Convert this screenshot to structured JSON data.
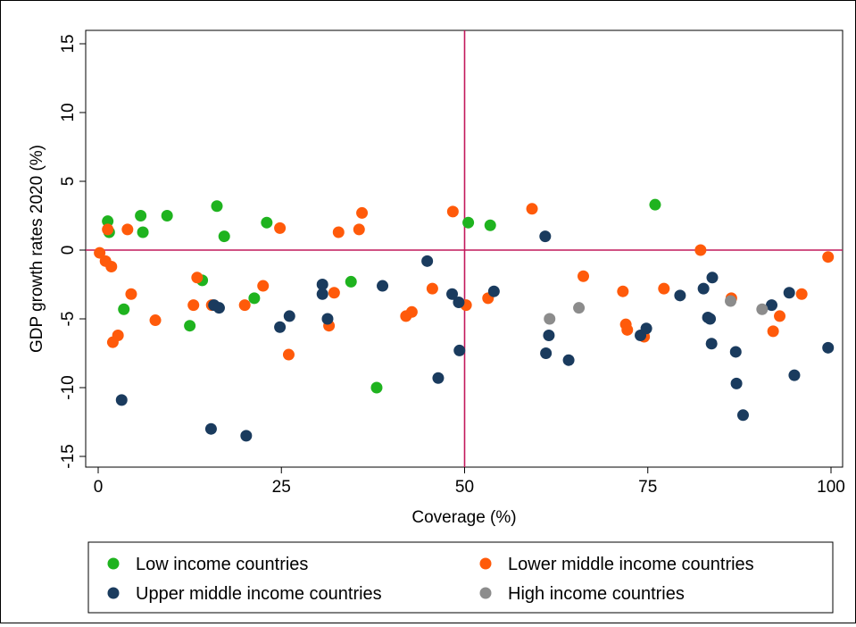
{
  "chart_data": {
    "type": "scatter",
    "xlabel": "Coverage (%)",
    "ylabel": "GDP growth rates 2020 (%)",
    "xlim": [
      0,
      100
    ],
    "ylim": [
      -15,
      15
    ],
    "xticks": [
      0,
      25,
      50,
      75,
      100
    ],
    "yticks": [
      -15,
      -10,
      -5,
      0,
      5,
      10,
      15
    ],
    "reference_lines": {
      "x": 50,
      "y": 0,
      "color": "#c2185b"
    },
    "grid": false,
    "legend_position": "bottom",
    "series": [
      {
        "name": "Low income countries",
        "color": "#1fb31f",
        "points": [
          [
            1.3,
            2.1
          ],
          [
            1.5,
            1.3
          ],
          [
            3.5,
            -4.3
          ],
          [
            5.8,
            2.5
          ],
          [
            6.1,
            1.3
          ],
          [
            9.4,
            2.5
          ],
          [
            12.5,
            -5.5
          ],
          [
            14.2,
            -2.2
          ],
          [
            16.2,
            3.2
          ],
          [
            17.2,
            1.0
          ],
          [
            21.3,
            -3.5
          ],
          [
            23,
            2.0
          ],
          [
            34.5,
            -2.3
          ],
          [
            38,
            -10.0
          ],
          [
            50.5,
            2.0
          ],
          [
            53.5,
            1.8
          ],
          [
            76,
            3.3
          ]
        ]
      },
      {
        "name": "Lower middle income countries",
        "color": "#ff5a0a",
        "points": [
          [
            0.2,
            -0.2
          ],
          [
            1,
            -0.8
          ],
          [
            1.3,
            1.5
          ],
          [
            1.8,
            -1.2
          ],
          [
            2,
            -6.7
          ],
          [
            2.7,
            -6.2
          ],
          [
            4,
            1.5
          ],
          [
            4.5,
            -3.2
          ],
          [
            7.8,
            -5.1
          ],
          [
            13,
            -4.0
          ],
          [
            13.5,
            -2.0
          ],
          [
            15.5,
            -4.0
          ],
          [
            20,
            -4.0
          ],
          [
            22.5,
            -2.6
          ],
          [
            24.8,
            1.6
          ],
          [
            26,
            -7.6
          ],
          [
            31.5,
            -5.5
          ],
          [
            32.2,
            -3.1
          ],
          [
            32.8,
            1.3
          ],
          [
            35.6,
            1.5
          ],
          [
            36,
            2.7
          ],
          [
            42,
            -4.8
          ],
          [
            42.8,
            -4.5
          ],
          [
            45.6,
            -2.8
          ],
          [
            48.4,
            2.8
          ],
          [
            50.2,
            -4.0
          ],
          [
            53.2,
            -3.5
          ],
          [
            59.2,
            3.0
          ],
          [
            66.2,
            -1.9
          ],
          [
            71.6,
            -3.0
          ],
          [
            72,
            -5.4
          ],
          [
            72.2,
            -5.8
          ],
          [
            74.5,
            -6.3
          ],
          [
            77.2,
            -2.8
          ],
          [
            82.2,
            0.0
          ],
          [
            86.4,
            -3.5
          ],
          [
            92.1,
            -5.9
          ],
          [
            93,
            -4.8
          ],
          [
            96,
            -3.2
          ],
          [
            99.6,
            -0.5
          ]
        ]
      },
      {
        "name": "Upper middle income countries",
        "color": "#1a3b5e",
        "points": [
          [
            3.2,
            -10.9
          ],
          [
            15.4,
            -13.0
          ],
          [
            15.8,
            -4.0
          ],
          [
            16.5,
            -4.2
          ],
          [
            20.2,
            -13.5
          ],
          [
            24.8,
            -5.6
          ],
          [
            26.1,
            -4.8
          ],
          [
            30.6,
            -2.5
          ],
          [
            30.6,
            -3.2
          ],
          [
            31.3,
            -5.0
          ],
          [
            38.8,
            -2.6
          ],
          [
            44.9,
            -0.8
          ],
          [
            46.4,
            -9.3
          ],
          [
            48.3,
            -3.2
          ],
          [
            49.2,
            -3.8
          ],
          [
            49.3,
            -7.3
          ],
          [
            54,
            -3.0
          ],
          [
            61,
            1.0
          ],
          [
            61.1,
            -7.5
          ],
          [
            61.5,
            -6.2
          ],
          [
            64.2,
            -8.0
          ],
          [
            74,
            -6.2
          ],
          [
            74.8,
            -5.7
          ],
          [
            79.4,
            -3.3
          ],
          [
            82.6,
            -2.8
          ],
          [
            83.2,
            -4.9
          ],
          [
            83.5,
            -5.0
          ],
          [
            83.7,
            -6.8
          ],
          [
            83.8,
            -2.0
          ],
          [
            87,
            -7.4
          ],
          [
            87.1,
            -9.7
          ],
          [
            88,
            -12.0
          ],
          [
            91.9,
            -4.0
          ],
          [
            94.3,
            -3.1
          ],
          [
            95,
            -9.1
          ],
          [
            99.6,
            -7.1
          ]
        ]
      },
      {
        "name": "High income countries",
        "color": "#8c8c8c",
        "points": [
          [
            61.6,
            -5.0
          ],
          [
            65.6,
            -4.2
          ],
          [
            86.3,
            -3.7
          ],
          [
            90.6,
            -4.3
          ]
        ]
      }
    ]
  }
}
